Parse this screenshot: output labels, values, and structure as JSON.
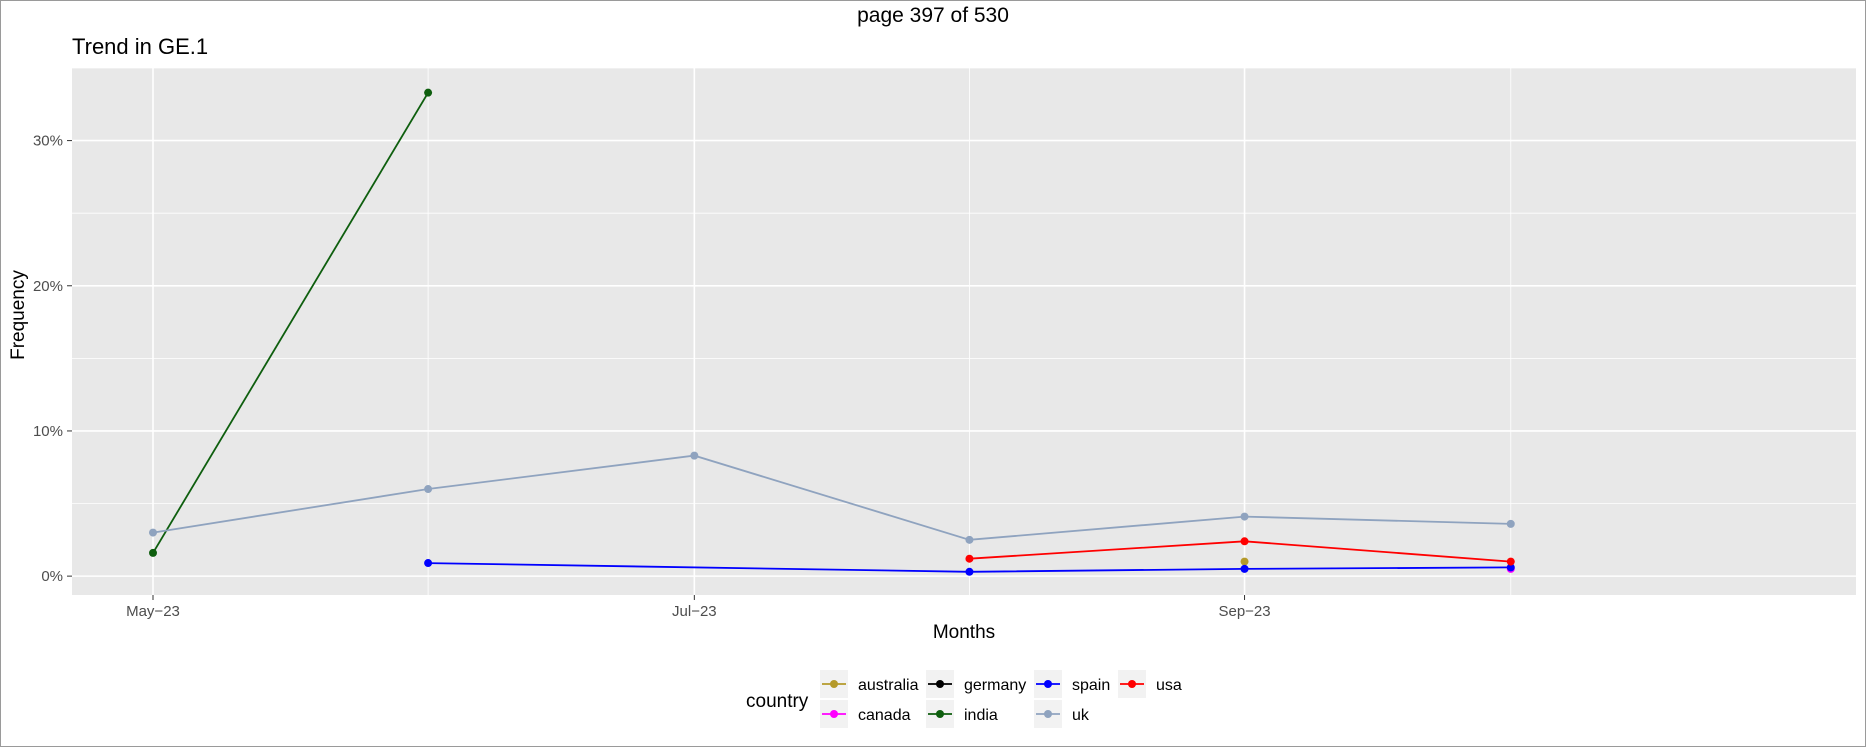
{
  "page_indicator": "page 397 of 530",
  "chart_data": {
    "type": "line",
    "title": "Trend in GE.1",
    "xlabel": "Months",
    "ylabel": "Frequency",
    "x_tick_labels": [
      "May−23",
      "Jul−23",
      "Sep−23"
    ],
    "y_tick_labels": [
      "0%",
      "10%",
      "20%",
      "30%"
    ],
    "x_range": [
      "2023-05-01",
      "2023-10-31"
    ],
    "ylim": [
      -0.013,
      0.35
    ],
    "grid": true,
    "legend": {
      "title": "country",
      "placement": "bottom",
      "entries": [
        "australia",
        "canada",
        "germany",
        "india",
        "spain",
        "uk",
        "usa"
      ]
    },
    "series": [
      {
        "name": "australia",
        "color": "#b59a2a",
        "points": [
          {
            "x": "2023-09-01",
            "y": 0.01
          }
        ]
      },
      {
        "name": "canada",
        "color": "#ff00ff",
        "points": [
          {
            "x": "2023-10-01",
            "y": 0.005
          }
        ]
      },
      {
        "name": "germany",
        "color": "#000000",
        "points": []
      },
      {
        "name": "india",
        "color": "#0e5e0e",
        "points": [
          {
            "x": "2023-05-01",
            "y": 0.016
          },
          {
            "x": "2023-06-01",
            "y": 0.333
          }
        ]
      },
      {
        "name": "spain",
        "color": "#0000ff",
        "points": [
          {
            "x": "2023-06-01",
            "y": 0.009
          },
          {
            "x": "2023-08-01",
            "y": 0.003
          },
          {
            "x": "2023-09-01",
            "y": 0.005
          },
          {
            "x": "2023-10-01",
            "y": 0.006
          }
        ]
      },
      {
        "name": "uk",
        "color": "#8fa3bf",
        "points": [
          {
            "x": "2023-05-01",
            "y": 0.03
          },
          {
            "x": "2023-06-01",
            "y": 0.06
          },
          {
            "x": "2023-07-01",
            "y": 0.083
          },
          {
            "x": "2023-08-01",
            "y": 0.025
          },
          {
            "x": "2023-09-01",
            "y": 0.041
          },
          {
            "x": "2023-10-01",
            "y": 0.036
          }
        ]
      },
      {
        "name": "usa",
        "color": "#ff0000",
        "points": [
          {
            "x": "2023-08-01",
            "y": 0.012
          },
          {
            "x": "2023-09-01",
            "y": 0.024
          },
          {
            "x": "2023-10-01",
            "y": 0.01
          }
        ]
      }
    ]
  }
}
